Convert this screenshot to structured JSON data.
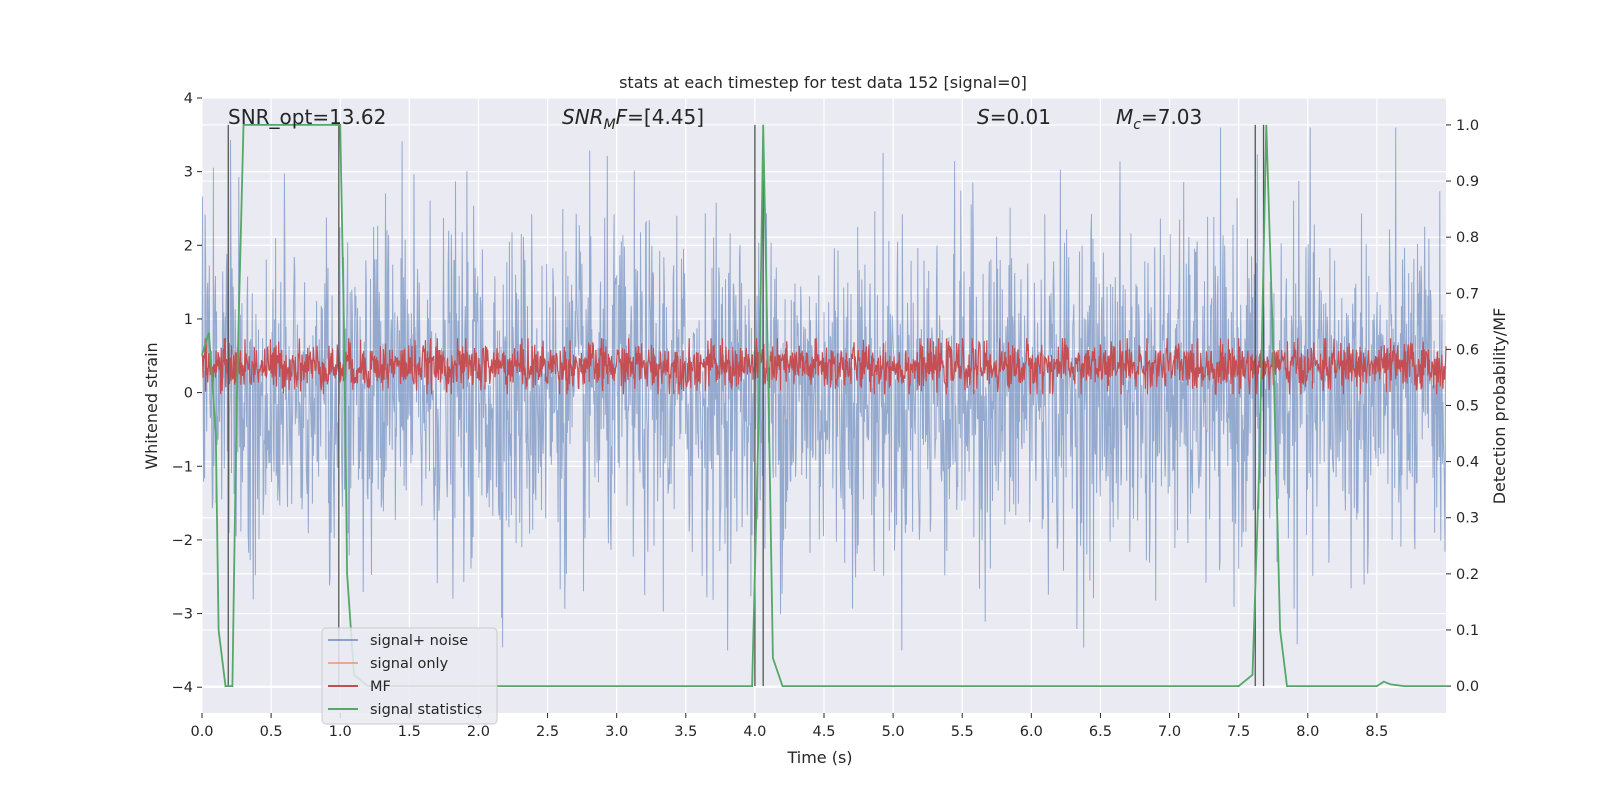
{
  "chart_data": {
    "type": "line",
    "title": "stats at each timestep for test data 152 [signal=0]",
    "xlabel": "Time (s)",
    "ylabel": "Whitened strain",
    "y2label": "Detection probability/MF",
    "xlim": [
      0.0,
      9.0
    ],
    "ylim": [
      -4.35,
      4.0
    ],
    "y2lim": [
      -0.048,
      1.048
    ],
    "x_ticks": [
      "0.0",
      "0.5",
      "1.0",
      "1.5",
      "2.0",
      "2.5",
      "3.0",
      "3.5",
      "4.0",
      "4.5",
      "5.0",
      "5.5",
      "6.0",
      "6.5",
      "7.0",
      "7.5",
      "8.0",
      "8.5"
    ],
    "y_ticks": [
      "4",
      "3",
      "2",
      "1",
      "0",
      "−1",
      "−2",
      "−3",
      "−4"
    ],
    "y2_ticks": [
      "1.0",
      "0.9",
      "0.8",
      "0.7",
      "0.6",
      "0.5",
      "0.4",
      "0.3",
      "0.2",
      "0.1",
      "0.0"
    ],
    "grid": true,
    "legend_position": "lower-left",
    "background_color": "#eaeaf2",
    "colors": {
      "signal_noise": "#4c72b0",
      "signal_only": "#dd8452",
      "mf": "#c44e52",
      "signal_statistics": "#55a868",
      "vlines": "#555555"
    },
    "annotations": {
      "snr_opt": "SNR_opt=13.62",
      "snr_mf_label": "SNR",
      "snr_mf_sub": "M",
      "snr_mf_label2": "F",
      "snr_mf_value": "=[4.45]",
      "s_label": "S",
      "s_value": "=0.01",
      "mc_label": "M",
      "mc_sub": "c",
      "mc_value": "=7.03"
    },
    "series": [
      {
        "name": "signal+ noise",
        "description": "whitened noisy strain, approx. zero-mean noise",
        "amplitude_range": [
          -3.5,
          3.6
        ]
      },
      {
        "name": "signal only",
        "values": []
      },
      {
        "name": "MF",
        "description": "matched filter output on right axis",
        "value_range": [
          0.52,
          0.62
        ]
      },
      {
        "name": "signal statistics",
        "x": [
          0.0,
          0.05,
          0.1,
          0.12,
          0.17,
          0.22,
          0.25,
          0.3,
          0.4,
          0.6,
          0.8,
          0.95,
          1.0,
          1.03,
          1.05,
          1.1,
          1.2,
          1.3,
          1.5,
          2.0,
          3.0,
          3.5,
          3.9,
          3.98,
          4.03,
          4.06,
          4.1,
          4.13,
          4.2,
          4.3,
          5.0,
          6.0,
          7.0,
          7.5,
          7.6,
          7.65,
          7.7,
          7.75,
          7.8,
          7.85,
          8.0,
          8.5,
          8.55,
          8.6,
          8.7,
          9.0
        ],
        "y": [
          0.59,
          0.63,
          0.45,
          0.1,
          0.0,
          0.0,
          0.5,
          1.0,
          1.0,
          1.0,
          1.0,
          1.0,
          1.0,
          0.6,
          0.2,
          0.02,
          0.0,
          0.0,
          0.0,
          0.0,
          0.0,
          0.0,
          0.0,
          0.0,
          0.5,
          1.0,
          0.5,
          0.05,
          0.0,
          0.0,
          0.0,
          0.0,
          0.0,
          0.0,
          0.02,
          0.4,
          1.0,
          0.6,
          0.1,
          0.0,
          0.0,
          0.0,
          0.008,
          0.003,
          0.0,
          0.0
        ]
      }
    ],
    "vertical_lines_x": [
      0.19,
      0.99,
      4.0,
      4.06,
      7.62,
      7.68
    ],
    "legend": [
      "signal+ noise",
      "signal only",
      "MF",
      "signal statistics"
    ]
  }
}
